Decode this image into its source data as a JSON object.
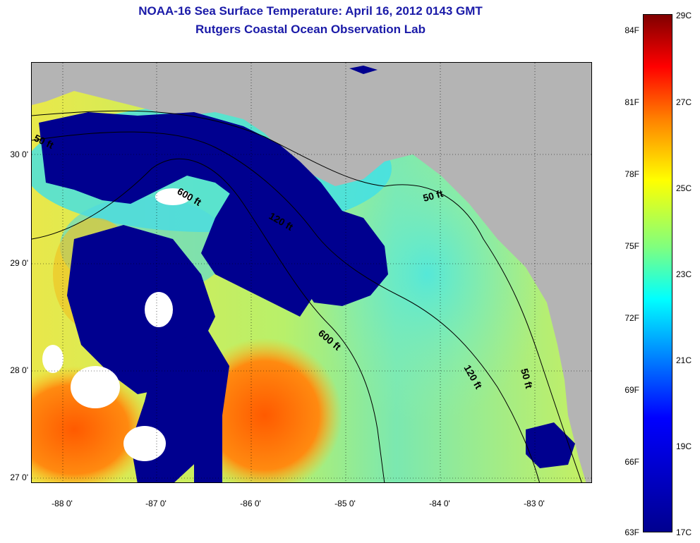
{
  "title": {
    "line1": "NOAA-16 Sea Surface Temperature:  April 16, 2012 0143 GMT",
    "line2": "Rutgers Coastal Ocean Observation Lab"
  },
  "map": {
    "lat_labels": [
      "30 0'",
      "29 0'",
      "28 0'",
      "27 0'"
    ],
    "lon_labels": [
      "-88 0'",
      "-87 0'",
      "-86 0'",
      "-85 0'",
      "-84 0'",
      "-83 0'"
    ],
    "contour_labels": [
      "50 ft",
      "600 ft",
      "120 ft",
      "50 ft",
      "600 ft",
      "120 ft",
      "50 ft"
    ],
    "colors": {
      "land": "#b4b4b4",
      "cloud_cold": "#00008f",
      "warm": "#ff6a00",
      "ocean": "#d8ff3a"
    }
  },
  "colorbar": {
    "fahrenheit": [
      "84F",
      "81F",
      "78F",
      "75F",
      "72F",
      "69F",
      "66F",
      "63F"
    ],
    "celsius": [
      "29C",
      "27C",
      "25C",
      "23C",
      "21C",
      "19C",
      "17C"
    ]
  }
}
